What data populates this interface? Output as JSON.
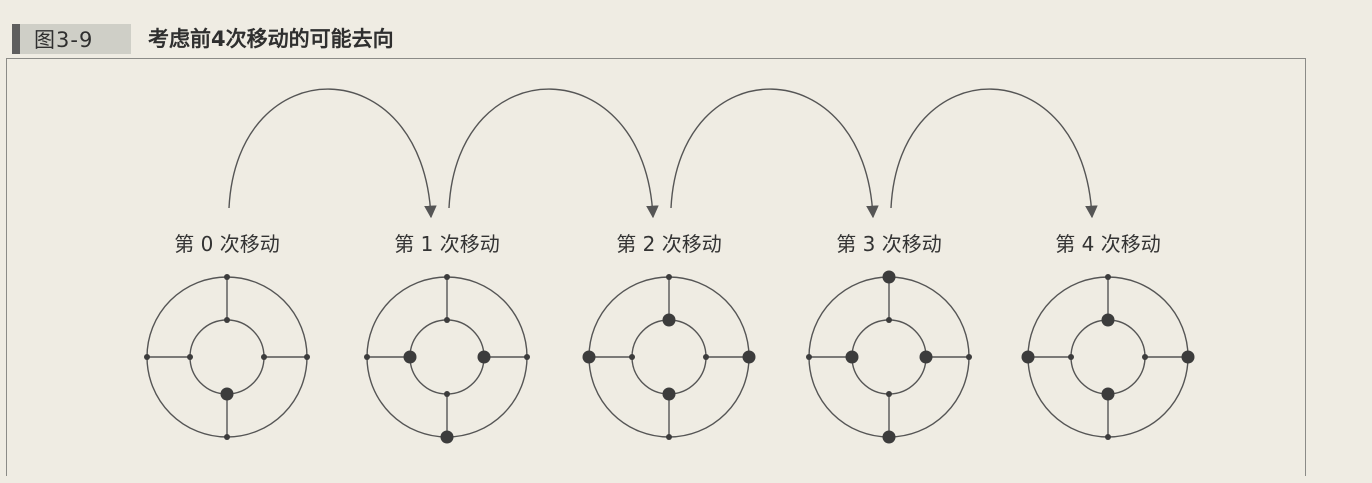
{
  "figure": {
    "number": "图3-9",
    "title": "考虑前4次移动的可能去向"
  },
  "colors": {
    "line": "#555555",
    "dot": "#3c3c3c",
    "background": "#efece3"
  },
  "steps": [
    {
      "label": "第 0 次移动",
      "large_dots": [
        "inner-bottom"
      ]
    },
    {
      "label": "第 1 次移动",
      "large_dots": [
        "inner-left",
        "inner-right",
        "outer-bottom"
      ]
    },
    {
      "label": "第 2 次移动",
      "large_dots": [
        "inner-top",
        "inner-bottom",
        "outer-left",
        "outer-right"
      ]
    },
    {
      "label": "第 3 次移动",
      "large_dots": [
        "inner-left",
        "inner-right",
        "outer-top",
        "outer-bottom"
      ]
    },
    {
      "label": "第 4 次移动",
      "large_dots": [
        "inner-top",
        "inner-bottom",
        "outer-left",
        "outer-right"
      ]
    }
  ]
}
